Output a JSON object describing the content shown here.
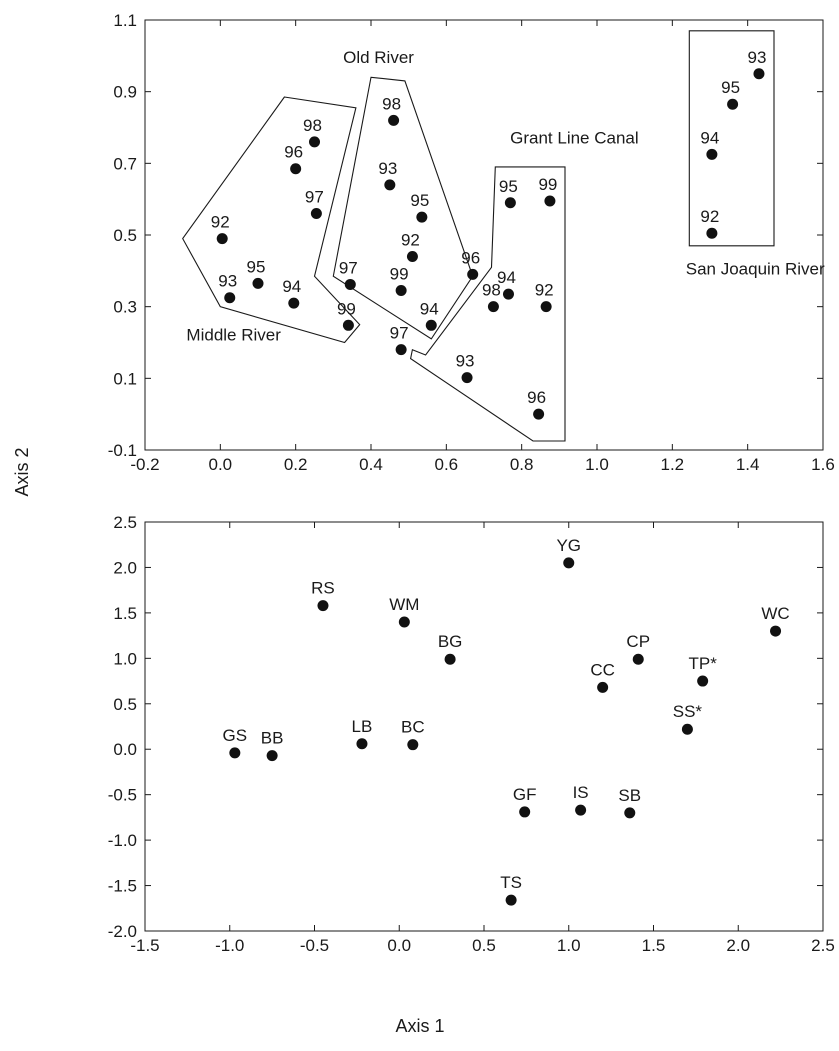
{
  "chart_data": [
    {
      "type": "scatter",
      "xlim": [
        -0.2,
        1.6
      ],
      "ylim": [
        -0.1,
        1.1
      ],
      "x_ticks": [
        "-0.2",
        "0.0",
        "0.2",
        "0.4",
        "0.6",
        "0.8",
        "1.0",
        "1.2",
        "1.4",
        "1.6"
      ],
      "y_ticks": [
        "-0.1",
        "0.1",
        "0.3",
        "0.5",
        "0.7",
        "0.9",
        "1.1"
      ],
      "grid": false,
      "groups": [
        {
          "name": "Middle River",
          "points": [
            {
              "label": "98",
              "x": 0.25,
              "y": 0.76
            },
            {
              "label": "96",
              "x": 0.2,
              "y": 0.685
            },
            {
              "label": "97",
              "x": 0.255,
              "y": 0.56
            },
            {
              "label": "92",
              "x": 0.005,
              "y": 0.49
            },
            {
              "label": "93",
              "x": 0.025,
              "y": 0.325
            },
            {
              "label": "95",
              "x": 0.1,
              "y": 0.365
            },
            {
              "label": "94",
              "x": 0.195,
              "y": 0.31
            },
            {
              "label": "99",
              "x": 0.34,
              "y": 0.248
            }
          ]
        },
        {
          "name": "Old River",
          "points": [
            {
              "label": "98",
              "x": 0.46,
              "y": 0.82
            },
            {
              "label": "93",
              "x": 0.45,
              "y": 0.64
            },
            {
              "label": "95",
              "x": 0.535,
              "y": 0.55
            },
            {
              "label": "92",
              "x": 0.51,
              "y": 0.44
            },
            {
              "label": "97",
              "x": 0.345,
              "y": 0.362
            },
            {
              "label": "99",
              "x": 0.48,
              "y": 0.345
            },
            {
              "label": "94",
              "x": 0.56,
              "y": 0.248
            }
          ]
        },
        {
          "name": "Grant Line Canal",
          "points": [
            {
              "label": "95",
              "x": 0.77,
              "y": 0.59
            },
            {
              "label": "99",
              "x": 0.875,
              "y": 0.595
            },
            {
              "label": "96",
              "x": 0.67,
              "y": 0.39
            },
            {
              "label": "94",
              "x": 0.765,
              "y": 0.335
            },
            {
              "label": "98",
              "x": 0.725,
              "y": 0.3
            },
            {
              "label": "92",
              "x": 0.865,
              "y": 0.3
            },
            {
              "label": "97",
              "x": 0.48,
              "y": 0.18
            },
            {
              "label": "93",
              "x": 0.655,
              "y": 0.102
            },
            {
              "label": "96",
              "x": 0.845,
              "y": 0.0
            }
          ]
        },
        {
          "name": "San Joaquin River",
          "points": [
            {
              "label": "93",
              "x": 1.43,
              "y": 0.95
            },
            {
              "label": "95",
              "x": 1.36,
              "y": 0.865
            },
            {
              "label": "94",
              "x": 1.305,
              "y": 0.725
            },
            {
              "label": "92",
              "x": 1.305,
              "y": 0.505
            }
          ]
        }
      ]
    },
    {
      "type": "scatter",
      "xlim": [
        -1.5,
        2.5
      ],
      "ylim": [
        -2.0,
        2.5
      ],
      "x_ticks": [
        "-1.5",
        "-1.0",
        "-0.5",
        "0.0",
        "0.5",
        "1.0",
        "1.5",
        "2.0",
        "2.5"
      ],
      "y_ticks": [
        "-2.0",
        "-1.5",
        "-1.0",
        "-0.5",
        "0.0",
        "0.5",
        "1.0",
        "1.5",
        "2.0",
        "2.5"
      ],
      "grid": false,
      "points": [
        {
          "label": "YG",
          "x": 1.0,
          "y": 2.05
        },
        {
          "label": "RS",
          "x": -0.45,
          "y": 1.58
        },
        {
          "label": "WM",
          "x": 0.03,
          "y": 1.4
        },
        {
          "label": "WC",
          "x": 2.22,
          "y": 1.3
        },
        {
          "label": "BG",
          "x": 0.3,
          "y": 0.99
        },
        {
          "label": "CP",
          "x": 1.41,
          "y": 0.99
        },
        {
          "label": "TP*",
          "x": 1.79,
          "y": 0.75
        },
        {
          "label": "CC",
          "x": 1.2,
          "y": 0.68
        },
        {
          "label": "SS*",
          "x": 1.7,
          "y": 0.22
        },
        {
          "label": "GS",
          "x": -0.97,
          "y": -0.04
        },
        {
          "label": "BB",
          "x": -0.75,
          "y": -0.07
        },
        {
          "label": "LB",
          "x": -0.22,
          "y": 0.06
        },
        {
          "label": "BC",
          "x": 0.08,
          "y": 0.05
        },
        {
          "label": "GF",
          "x": 0.74,
          "y": -0.69
        },
        {
          "label": "IS",
          "x": 1.07,
          "y": -0.67
        },
        {
          "label": "SB",
          "x": 1.36,
          "y": -0.7
        },
        {
          "label": "TS",
          "x": 0.66,
          "y": -1.66
        }
      ]
    }
  ],
  "shared_axes": {
    "xlabel": "Axis 1",
    "ylabel": "Axis 2"
  }
}
